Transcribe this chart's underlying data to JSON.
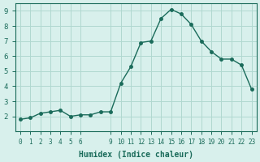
{
  "x": [
    0,
    1,
    2,
    3,
    4,
    5,
    6,
    7,
    8,
    9,
    10,
    11,
    12,
    13,
    14,
    15,
    16,
    17,
    18,
    19,
    20,
    21,
    22,
    23
  ],
  "y": [
    1.8,
    1.9,
    2.2,
    2.3,
    2.4,
    2.0,
    2.1,
    2.1,
    2.3,
    2.3,
    4.2,
    5.3,
    6.9,
    7.0,
    8.5,
    9.1,
    8.8,
    8.1,
    7.0,
    6.3,
    5.8,
    5.8,
    5.4,
    3.8
  ],
  "xlabel": "Humidex (Indice chaleur)",
  "ylabel": "",
  "line_color": "#1a6b5a",
  "marker": "o",
  "bg_color": "#d8f0ec",
  "grid_color": "#b0d8d0",
  "axis_color": "#1a6b5a",
  "tick_color": "#1a6b5a",
  "ylim": [
    1,
    9.5
  ],
  "yticks": [
    2,
    3,
    4,
    5,
    6,
    7,
    8,
    9
  ],
  "xticks": [
    0,
    1,
    2,
    3,
    4,
    5,
    6,
    9,
    10,
    11,
    12,
    13,
    14,
    15,
    16,
    17,
    18,
    19,
    20,
    21,
    22,
    23
  ],
  "xtick_labels": [
    "0",
    "1",
    "2",
    "3",
    "4",
    "5",
    "6",
    "9",
    "10",
    "11",
    "12",
    "13",
    "14",
    "15",
    "16",
    "17",
    "18",
    "19",
    "20",
    "21",
    "22",
    "23"
  ]
}
